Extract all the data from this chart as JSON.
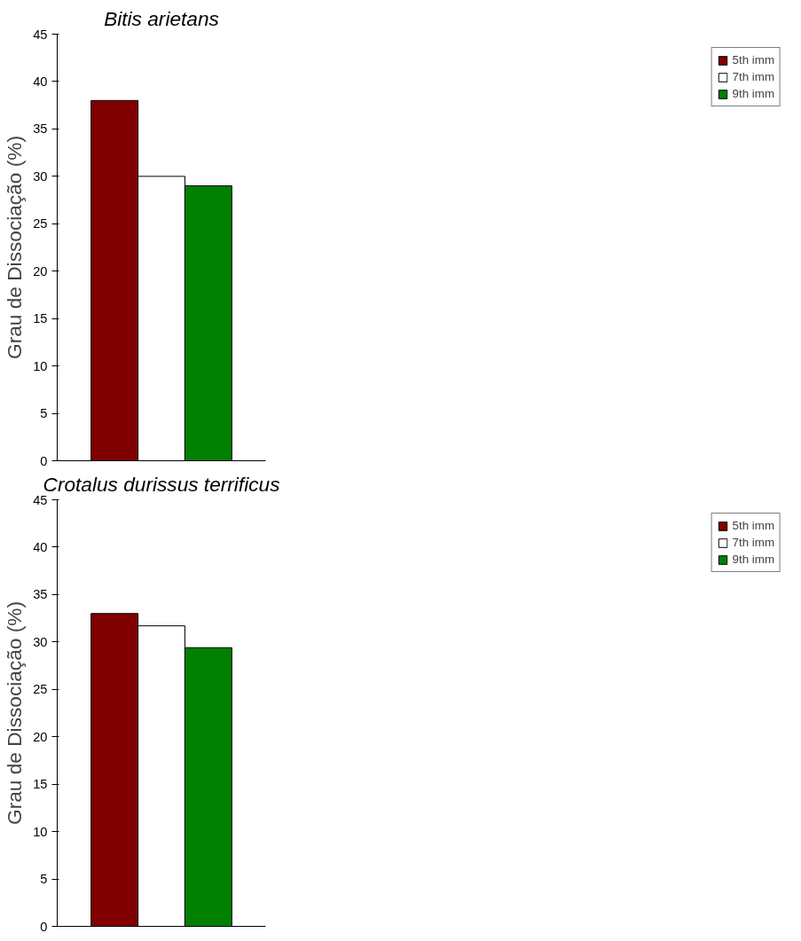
{
  "chart_data": [
    {
      "type": "bar",
      "title": "Bitis arietans",
      "ylabel": "Grau de Dissociação (%)",
      "categories": [
        null
      ],
      "series": [
        {
          "name": "5th imm",
          "color": "#800000",
          "values": [
            38
          ]
        },
        {
          "name": "7th imm",
          "color": "#ffffff",
          "values": [
            30
          ]
        },
        {
          "name": "9th imm",
          "color": "#008000",
          "values": [
            29
          ]
        }
      ],
      "ylim": [
        0,
        45
      ],
      "yticks": [
        0,
        5,
        10,
        15,
        20,
        25,
        30,
        35,
        40,
        45
      ],
      "grid": false,
      "legend": "right"
    },
    {
      "type": "bar",
      "title": "Crotalus durissus terrificus",
      "ylabel": "Grau de Dissociação (%)",
      "categories": [
        null
      ],
      "series": [
        {
          "name": "5th imm",
          "color": "#800000",
          "values": [
            33
          ]
        },
        {
          "name": "7th imm",
          "color": "#ffffff",
          "values": [
            31.7
          ]
        },
        {
          "name": "9th imm",
          "color": "#008000",
          "values": [
            29.4
          ]
        }
      ],
      "ylim": [
        0,
        45
      ],
      "yticks": [
        0,
        5,
        10,
        15,
        20,
        25,
        30,
        35,
        40,
        45
      ],
      "grid": false,
      "legend": "right"
    }
  ]
}
